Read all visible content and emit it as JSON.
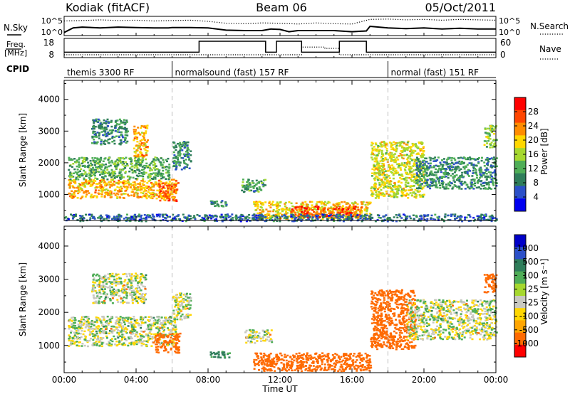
{
  "header": {
    "radar": "Kodiak (fitACF)",
    "beam": "Beam 06",
    "date": "05/Oct/2011"
  },
  "status_panels": {
    "nsky_label": "N.Sky",
    "nsearch_label": "N.Search",
    "freq_label_1": "Freq.",
    "freq_label_2": "[MHz]",
    "nave_label": "Nave",
    "cpid_label": "CPID",
    "noise_left_ticks": [
      "10^5",
      "10^0"
    ],
    "noise_right_ticks": [
      "10^5",
      "10^0"
    ],
    "freq_ticks": [
      "18",
      "8"
    ],
    "nave_ticks": [
      "60",
      "0"
    ],
    "cpid_segments": [
      {
        "label": "themis 3300 RF",
        "start": 0
      },
      {
        "label": "normalsound (fast) 157 RF",
        "start": 6
      },
      {
        "label": "normal (fast) 151 RF",
        "start": 18
      }
    ]
  },
  "colors": {
    "power_scale": [
      "#0000f0",
      "#2b50c8",
      "#2e7d5a",
      "#4fae57",
      "#a6d82e",
      "#ffd700",
      "#ff8c00",
      "#ff4500",
      "#ff0000"
    ],
    "velocity_scale": [
      "#0000c8",
      "#2b50c8",
      "#2e7d5a",
      "#4fae57",
      "#a6d82e",
      "#c8c8c0",
      "#ffd700",
      "#ffa500",
      "#ff6a00",
      "#ff0000"
    ],
    "velocity_gray": "#c8c8c0"
  },
  "chart_data": [
    {
      "type": "line",
      "panel": "noise",
      "x_range": [
        0,
        24
      ],
      "series": [
        {
          "name": "N.Sky",
          "x": [
            0,
            0.5,
            1,
            2,
            3,
            4,
            5,
            5.8,
            6,
            7,
            8,
            9,
            10,
            11,
            11.5,
            12,
            12.5,
            13,
            14,
            15,
            16,
            16.8,
            17,
            18,
            19,
            20,
            21,
            22,
            23,
            24
          ],
          "y": [
            0.8,
            2.0,
            2.2,
            2.0,
            2.2,
            2.1,
            2.0,
            2.0,
            2.1,
            2.1,
            2.0,
            1.4,
            1.3,
            1.3,
            1.7,
            1.6,
            1.0,
            1.3,
            1.3,
            1.3,
            1.0,
            1.2,
            2.4,
            2.0,
            1.8,
            2.0,
            1.7,
            1.9,
            1.7,
            1.7
          ]
        },
        {
          "name": "N.Search",
          "x": [
            0,
            1,
            2,
            3,
            4,
            5,
            6,
            7,
            8,
            9,
            10,
            11,
            12,
            13,
            14,
            15,
            16,
            17,
            18,
            19,
            20,
            21,
            22,
            23,
            24
          ],
          "y": [
            3.8,
            3.9,
            4.1,
            3.9,
            4.0,
            3.8,
            3.9,
            4.0,
            3.7,
            3.2,
            3.1,
            3.3,
            3.2,
            3.0,
            3.3,
            3.1,
            3.0,
            4.2,
            4.3,
            4.1,
            4.2,
            4.0,
            4.2,
            4.1,
            4.0
          ]
        }
      ]
    },
    {
      "type": "line",
      "panel": "frequency",
      "x_range": [
        0,
        24
      ],
      "series": [
        {
          "name": "Freq.",
          "x": [
            0,
            7.5,
            7.5,
            11.2,
            11.2,
            11.8,
            11.8,
            13.2,
            13.2,
            15.3,
            15.3,
            16.8,
            16.8,
            24
          ],
          "y": [
            10.8,
            10.8,
            16.5,
            16.5,
            10.8,
            10.8,
            16.5,
            16.5,
            10.8,
            10.8,
            16.5,
            16.5,
            10.8,
            10.8
          ]
        },
        {
          "name": "Nave",
          "x": [
            0,
            13.2,
            13.2,
            14.5,
            14.5,
            15.3,
            15.3,
            24
          ],
          "y": [
            9.5,
            9.5,
            13.5,
            13.5,
            12.8,
            12.8,
            9.5,
            9.5
          ]
        }
      ]
    },
    {
      "type": "heatmap",
      "panel": "power",
      "ylabel": "Slant Range [km]",
      "x_range": [
        0,
        24
      ],
      "y_range": [
        180,
        4600
      ],
      "y_ticks": [
        1000,
        2000,
        3000,
        4000
      ],
      "colorbar": {
        "label": "Power [dB]",
        "ticks": [
          "28",
          "24",
          "20",
          "16",
          "12",
          "8",
          "4"
        ]
      },
      "regions": [
        {
          "x": [
            0.2,
            6.2
          ],
          "y": [
            900,
            1500
          ],
          "v": 22
        },
        {
          "x": [
            0.2,
            5.8
          ],
          "y": [
            1500,
            2200
          ],
          "v": 12
        },
        {
          "x": [
            3.8,
            4.6
          ],
          "y": [
            2200,
            3200
          ],
          "v": 22
        },
        {
          "x": [
            1.5,
            3.5
          ],
          "y": [
            2600,
            3400
          ],
          "v": 9
        },
        {
          "x": [
            5.2,
            6.3
          ],
          "y": [
            800,
            1400
          ],
          "v": 26
        },
        {
          "x": [
            6.0,
            7.0
          ],
          "y": [
            1800,
            2700
          ],
          "v": 9
        },
        {
          "x": [
            8.0,
            9.0
          ],
          "y": [
            650,
            850
          ],
          "v": 9
        },
        {
          "x": [
            9.8,
            11.2
          ],
          "y": [
            1100,
            1500
          ],
          "v": 10
        },
        {
          "x": [
            10.5,
            17.0
          ],
          "y": [
            250,
            800
          ],
          "v": 20
        },
        {
          "x": [
            12.5,
            16.5
          ],
          "y": [
            300,
            650
          ],
          "v": 28
        },
        {
          "x": [
            0,
            24
          ],
          "y": [
            180,
            400
          ],
          "v": 6
        },
        {
          "x": [
            17.0,
            20.0
          ],
          "y": [
            900,
            2700
          ],
          "v": 18
        },
        {
          "x": [
            19.5,
            24.0
          ],
          "y": [
            1200,
            2200
          ],
          "v": 9
        },
        {
          "x": [
            23.3,
            24.0
          ],
          "y": [
            2500,
            3200
          ],
          "v": 14
        }
      ]
    },
    {
      "type": "heatmap",
      "panel": "velocity",
      "xlabel": "Time UT",
      "ylabel": "Slant Range [km]",
      "x_range": [
        0,
        24
      ],
      "y_range": [
        180,
        4600
      ],
      "y_ticks": [
        1000,
        2000,
        3000,
        4000
      ],
      "x_ticks": [
        "00:00",
        "04:00",
        "08:00",
        "12:00",
        "16:00",
        "20:00",
        "00:00"
      ],
      "colorbar": {
        "label": "Velocity [m s⁻¹]",
        "ticks": [
          "1000",
          "500",
          "100",
          "25",
          "-25",
          "-100",
          "-500",
          "-1000"
        ]
      },
      "regions": [
        {
          "x": [
            0.2,
            6.2
          ],
          "y": [
            1000,
            1900
          ],
          "v": 0
        },
        {
          "x": [
            1.5,
            4.5
          ],
          "y": [
            2300,
            3200
          ],
          "v": 0
        },
        {
          "x": [
            5.0,
            6.4
          ],
          "y": [
            800,
            1400
          ],
          "v": -300
        },
        {
          "x": [
            6.0,
            7.0
          ],
          "y": [
            1800,
            2600
          ],
          "v": 0
        },
        {
          "x": [
            8.0,
            9.2
          ],
          "y": [
            650,
            850
          ],
          "v": 150
        },
        {
          "x": [
            10.0,
            11.5
          ],
          "y": [
            1100,
            1500
          ],
          "v": 0
        },
        {
          "x": [
            10.5,
            17.0
          ],
          "y": [
            250,
            800
          ],
          "v": -250
        },
        {
          "x": [
            17.0,
            19.5
          ],
          "y": [
            900,
            2700
          ],
          "v": -350
        },
        {
          "x": [
            19.0,
            24.0
          ],
          "y": [
            1200,
            2400
          ],
          "v": 0
        },
        {
          "x": [
            23.3,
            24.0
          ],
          "y": [
            2600,
            3200
          ],
          "v": -200
        }
      ]
    }
  ]
}
